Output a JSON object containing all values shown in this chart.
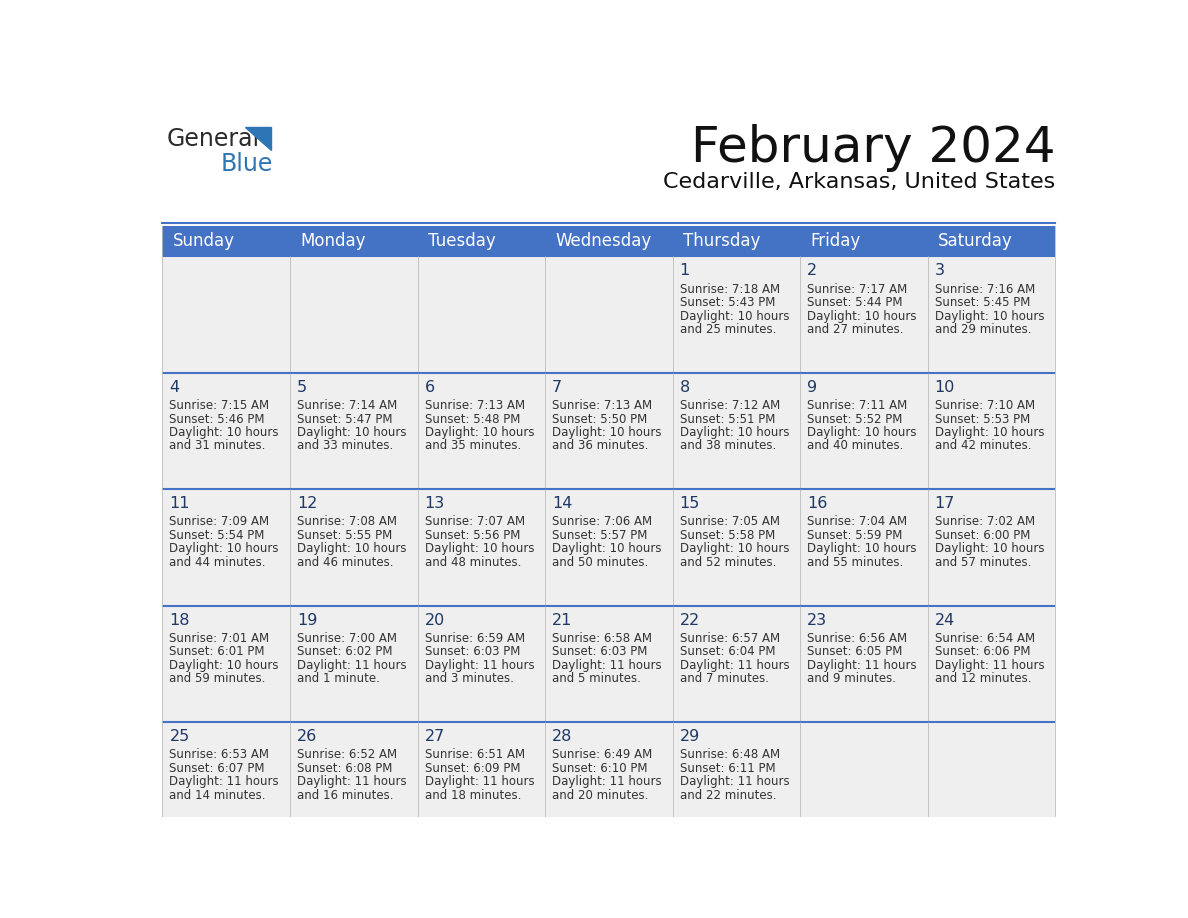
{
  "title": "February 2024",
  "subtitle": "Cedarville, Arkansas, United States",
  "header_bg": "#4472C4",
  "header_text_color": "#FFFFFF",
  "cell_bg": "#EFEFEF",
  "day_number_color": "#1F3864",
  "text_color": "#333333",
  "border_color": "#4472C4",
  "days_of_week": [
    "Sunday",
    "Monday",
    "Tuesday",
    "Wednesday",
    "Thursday",
    "Friday",
    "Saturday"
  ],
  "weeks": [
    [
      {
        "day": "",
        "sunrise": "",
        "sunset": "",
        "daylight": ""
      },
      {
        "day": "",
        "sunrise": "",
        "sunset": "",
        "daylight": ""
      },
      {
        "day": "",
        "sunrise": "",
        "sunset": "",
        "daylight": ""
      },
      {
        "day": "",
        "sunrise": "",
        "sunset": "",
        "daylight": ""
      },
      {
        "day": "1",
        "sunrise": "7:18 AM",
        "sunset": "5:43 PM",
        "daylight": "10 hours\nand 25 minutes."
      },
      {
        "day": "2",
        "sunrise": "7:17 AM",
        "sunset": "5:44 PM",
        "daylight": "10 hours\nand 27 minutes."
      },
      {
        "day": "3",
        "sunrise": "7:16 AM",
        "sunset": "5:45 PM",
        "daylight": "10 hours\nand 29 minutes."
      }
    ],
    [
      {
        "day": "4",
        "sunrise": "7:15 AM",
        "sunset": "5:46 PM",
        "daylight": "10 hours\nand 31 minutes."
      },
      {
        "day": "5",
        "sunrise": "7:14 AM",
        "sunset": "5:47 PM",
        "daylight": "10 hours\nand 33 minutes."
      },
      {
        "day": "6",
        "sunrise": "7:13 AM",
        "sunset": "5:48 PM",
        "daylight": "10 hours\nand 35 minutes."
      },
      {
        "day": "7",
        "sunrise": "7:13 AM",
        "sunset": "5:50 PM",
        "daylight": "10 hours\nand 36 minutes."
      },
      {
        "day": "8",
        "sunrise": "7:12 AM",
        "sunset": "5:51 PM",
        "daylight": "10 hours\nand 38 minutes."
      },
      {
        "day": "9",
        "sunrise": "7:11 AM",
        "sunset": "5:52 PM",
        "daylight": "10 hours\nand 40 minutes."
      },
      {
        "day": "10",
        "sunrise": "7:10 AM",
        "sunset": "5:53 PM",
        "daylight": "10 hours\nand 42 minutes."
      }
    ],
    [
      {
        "day": "11",
        "sunrise": "7:09 AM",
        "sunset": "5:54 PM",
        "daylight": "10 hours\nand 44 minutes."
      },
      {
        "day": "12",
        "sunrise": "7:08 AM",
        "sunset": "5:55 PM",
        "daylight": "10 hours\nand 46 minutes."
      },
      {
        "day": "13",
        "sunrise": "7:07 AM",
        "sunset": "5:56 PM",
        "daylight": "10 hours\nand 48 minutes."
      },
      {
        "day": "14",
        "sunrise": "7:06 AM",
        "sunset": "5:57 PM",
        "daylight": "10 hours\nand 50 minutes."
      },
      {
        "day": "15",
        "sunrise": "7:05 AM",
        "sunset": "5:58 PM",
        "daylight": "10 hours\nand 52 minutes."
      },
      {
        "day": "16",
        "sunrise": "7:04 AM",
        "sunset": "5:59 PM",
        "daylight": "10 hours\nand 55 minutes."
      },
      {
        "day": "17",
        "sunrise": "7:02 AM",
        "sunset": "6:00 PM",
        "daylight": "10 hours\nand 57 minutes."
      }
    ],
    [
      {
        "day": "18",
        "sunrise": "7:01 AM",
        "sunset": "6:01 PM",
        "daylight": "10 hours\nand 59 minutes."
      },
      {
        "day": "19",
        "sunrise": "7:00 AM",
        "sunset": "6:02 PM",
        "daylight": "11 hours\nand 1 minute."
      },
      {
        "day": "20",
        "sunrise": "6:59 AM",
        "sunset": "6:03 PM",
        "daylight": "11 hours\nand 3 minutes."
      },
      {
        "day": "21",
        "sunrise": "6:58 AM",
        "sunset": "6:03 PM",
        "daylight": "11 hours\nand 5 minutes."
      },
      {
        "day": "22",
        "sunrise": "6:57 AM",
        "sunset": "6:04 PM",
        "daylight": "11 hours\nand 7 minutes."
      },
      {
        "day": "23",
        "sunrise": "6:56 AM",
        "sunset": "6:05 PM",
        "daylight": "11 hours\nand 9 minutes."
      },
      {
        "day": "24",
        "sunrise": "6:54 AM",
        "sunset": "6:06 PM",
        "daylight": "11 hours\nand 12 minutes."
      }
    ],
    [
      {
        "day": "25",
        "sunrise": "6:53 AM",
        "sunset": "6:07 PM",
        "daylight": "11 hours\nand 14 minutes."
      },
      {
        "day": "26",
        "sunrise": "6:52 AM",
        "sunset": "6:08 PM",
        "daylight": "11 hours\nand 16 minutes."
      },
      {
        "day": "27",
        "sunrise": "6:51 AM",
        "sunset": "6:09 PM",
        "daylight": "11 hours\nand 18 minutes."
      },
      {
        "day": "28",
        "sunrise": "6:49 AM",
        "sunset": "6:10 PM",
        "daylight": "11 hours\nand 20 minutes."
      },
      {
        "day": "29",
        "sunrise": "6:48 AM",
        "sunset": "6:11 PM",
        "daylight": "11 hours\nand 22 minutes."
      },
      {
        "day": "",
        "sunrise": "",
        "sunset": "",
        "daylight": ""
      },
      {
        "day": "",
        "sunrise": "",
        "sunset": "",
        "daylight": ""
      }
    ]
  ]
}
